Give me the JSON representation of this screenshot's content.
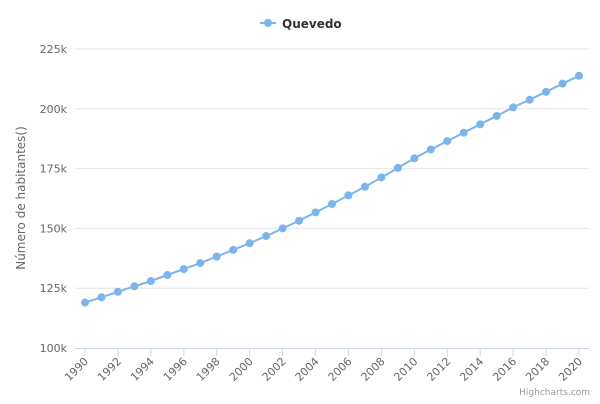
{
  "chart_data": {
    "type": "line",
    "title": "",
    "xlabel": "",
    "ylabel": "Número de habitantes()",
    "x": [
      1990,
      1991,
      1992,
      1993,
      1994,
      1995,
      1996,
      1997,
      1998,
      1999,
      2000,
      2001,
      2002,
      2003,
      2004,
      2005,
      2006,
      2007,
      2008,
      2009,
      2010,
      2011,
      2012,
      2013,
      2014,
      2015,
      2016,
      2017,
      2018,
      2019,
      2020
    ],
    "series": [
      {
        "name": "Quevedo",
        "color": "#7cb5ec",
        "values": [
          119000,
          121200,
          123500,
          125800,
          128000,
          130500,
          133000,
          135500,
          138200,
          141000,
          143800,
          146800,
          150000,
          153200,
          156700,
          160200,
          163800,
          167400,
          171300,
          175300,
          179300,
          183000,
          186500,
          190000,
          193500,
          197000,
          200600,
          203800,
          207100,
          210500,
          213800
        ]
      }
    ],
    "ylim": [
      100000,
      225000
    ],
    "yticks": [
      {
        "value": 100000,
        "label": "100k"
      },
      {
        "value": 125000,
        "label": "125k"
      },
      {
        "value": 150000,
        "label": "150k"
      },
      {
        "value": 175000,
        "label": "175k"
      },
      {
        "value": 200000,
        "label": "200k"
      },
      {
        "value": 225000,
        "label": "225k"
      }
    ],
    "xticks": [
      1990,
      1992,
      1994,
      1996,
      1998,
      2000,
      2002,
      2004,
      2006,
      2008,
      2010,
      2012,
      2014,
      2016,
      2018,
      2020
    ],
    "grid": true,
    "legend_position": "top-center"
  },
  "credits": "Highcharts.com"
}
